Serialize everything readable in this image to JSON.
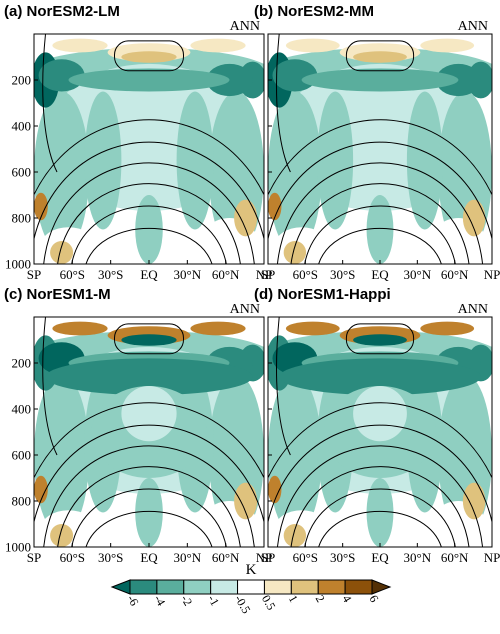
{
  "chart_data": [
    {
      "type": "heatmap",
      "title": "(a) NorESM2-LM",
      "annotation": "ANN",
      "x_ticks": [
        "SP",
        "60°S",
        "30°S",
        "EQ",
        "30°N",
        "60°N",
        "NP"
      ],
      "y_ticks": [
        200,
        400,
        600,
        800,
        1000
      ],
      "ylim": [
        1000,
        0
      ],
      "fields": "shaded",
      "contours": "black"
    },
    {
      "type": "heatmap",
      "title": "(b) NorESM2-MM",
      "annotation": "ANN",
      "x_ticks": [
        "SP",
        "60°S",
        "30°S",
        "EQ",
        "30°N",
        "60°N",
        "NP"
      ],
      "y_ticks": [
        200,
        400,
        600,
        800,
        1000
      ],
      "ylim": [
        1000,
        0
      ]
    },
    {
      "type": "heatmap",
      "title": "(c) NorESM1-M",
      "annotation": "ANN",
      "x_ticks": [
        "SP",
        "60°S",
        "30°S",
        "EQ",
        "30°N",
        "60°N",
        "NP"
      ],
      "y_ticks": [
        200,
        400,
        600,
        800,
        1000
      ],
      "ylim": [
        1000,
        0
      ]
    },
    {
      "type": "heatmap",
      "title": "(d) NorESM1-Happi",
      "annotation": "ANN",
      "x_ticks": [
        "SP",
        "60°S",
        "30°S",
        "EQ",
        "30°N",
        "60°N",
        "NP"
      ],
      "y_ticks": [
        200,
        400,
        600,
        800,
        1000
      ],
      "ylim": [
        1000,
        0
      ]
    }
  ],
  "colorbar": {
    "unit": "K",
    "labels": [
      "-6",
      "-4",
      "-2",
      "-1",
      "-0.5",
      "0.5",
      "1",
      "2",
      "4",
      "6"
    ],
    "colors": [
      "#01665e",
      "#2b8b7e",
      "#5aae9d",
      "#8fcfc1",
      "#c7eae5",
      "#ffffff",
      "#f6e8c3",
      "#dfc27d",
      "#bf812d",
      "#8c510a",
      "#543005"
    ]
  }
}
